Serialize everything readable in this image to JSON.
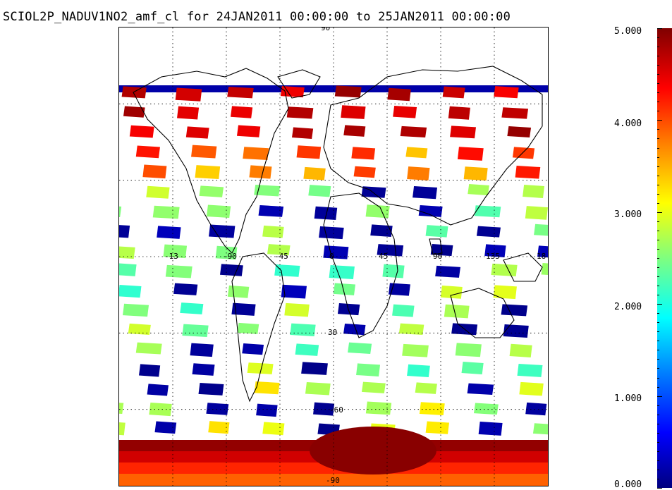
{
  "title": "SCIOL2P_NADUV1NO2_amf_cl for 24JAN2011 00:00:00 to 25JAN2011 00:00:00",
  "map": {
    "projection": "cylindrical",
    "lon_range": [
      -180,
      180
    ],
    "lat_range": [
      -90,
      90
    ],
    "lat_labels": {
      "top": "90",
      "mid_north": "30",
      "south_mid": "-60",
      "bottom": "-90"
    },
    "lon_labels": [
      "-13",
      "-90",
      "-45",
      "0",
      "45",
      "90",
      "135",
      "18"
    ],
    "gridlines": "dotted",
    "fill_color": "#ffffff",
    "coastline_color": "#000000"
  },
  "colorbar": {
    "min": 0.0,
    "max": 5.0,
    "ticks": [
      "0.000",
      "1.000",
      "2.000",
      "3.000",
      "4.000",
      "5.000"
    ],
    "colormap": [
      "#00007f",
      "#0000ff",
      "#007fff",
      "#00ffff",
      "#7fff7f",
      "#ffff00",
      "#ff7f00",
      "#ff0000",
      "#7f0000"
    ]
  }
}
